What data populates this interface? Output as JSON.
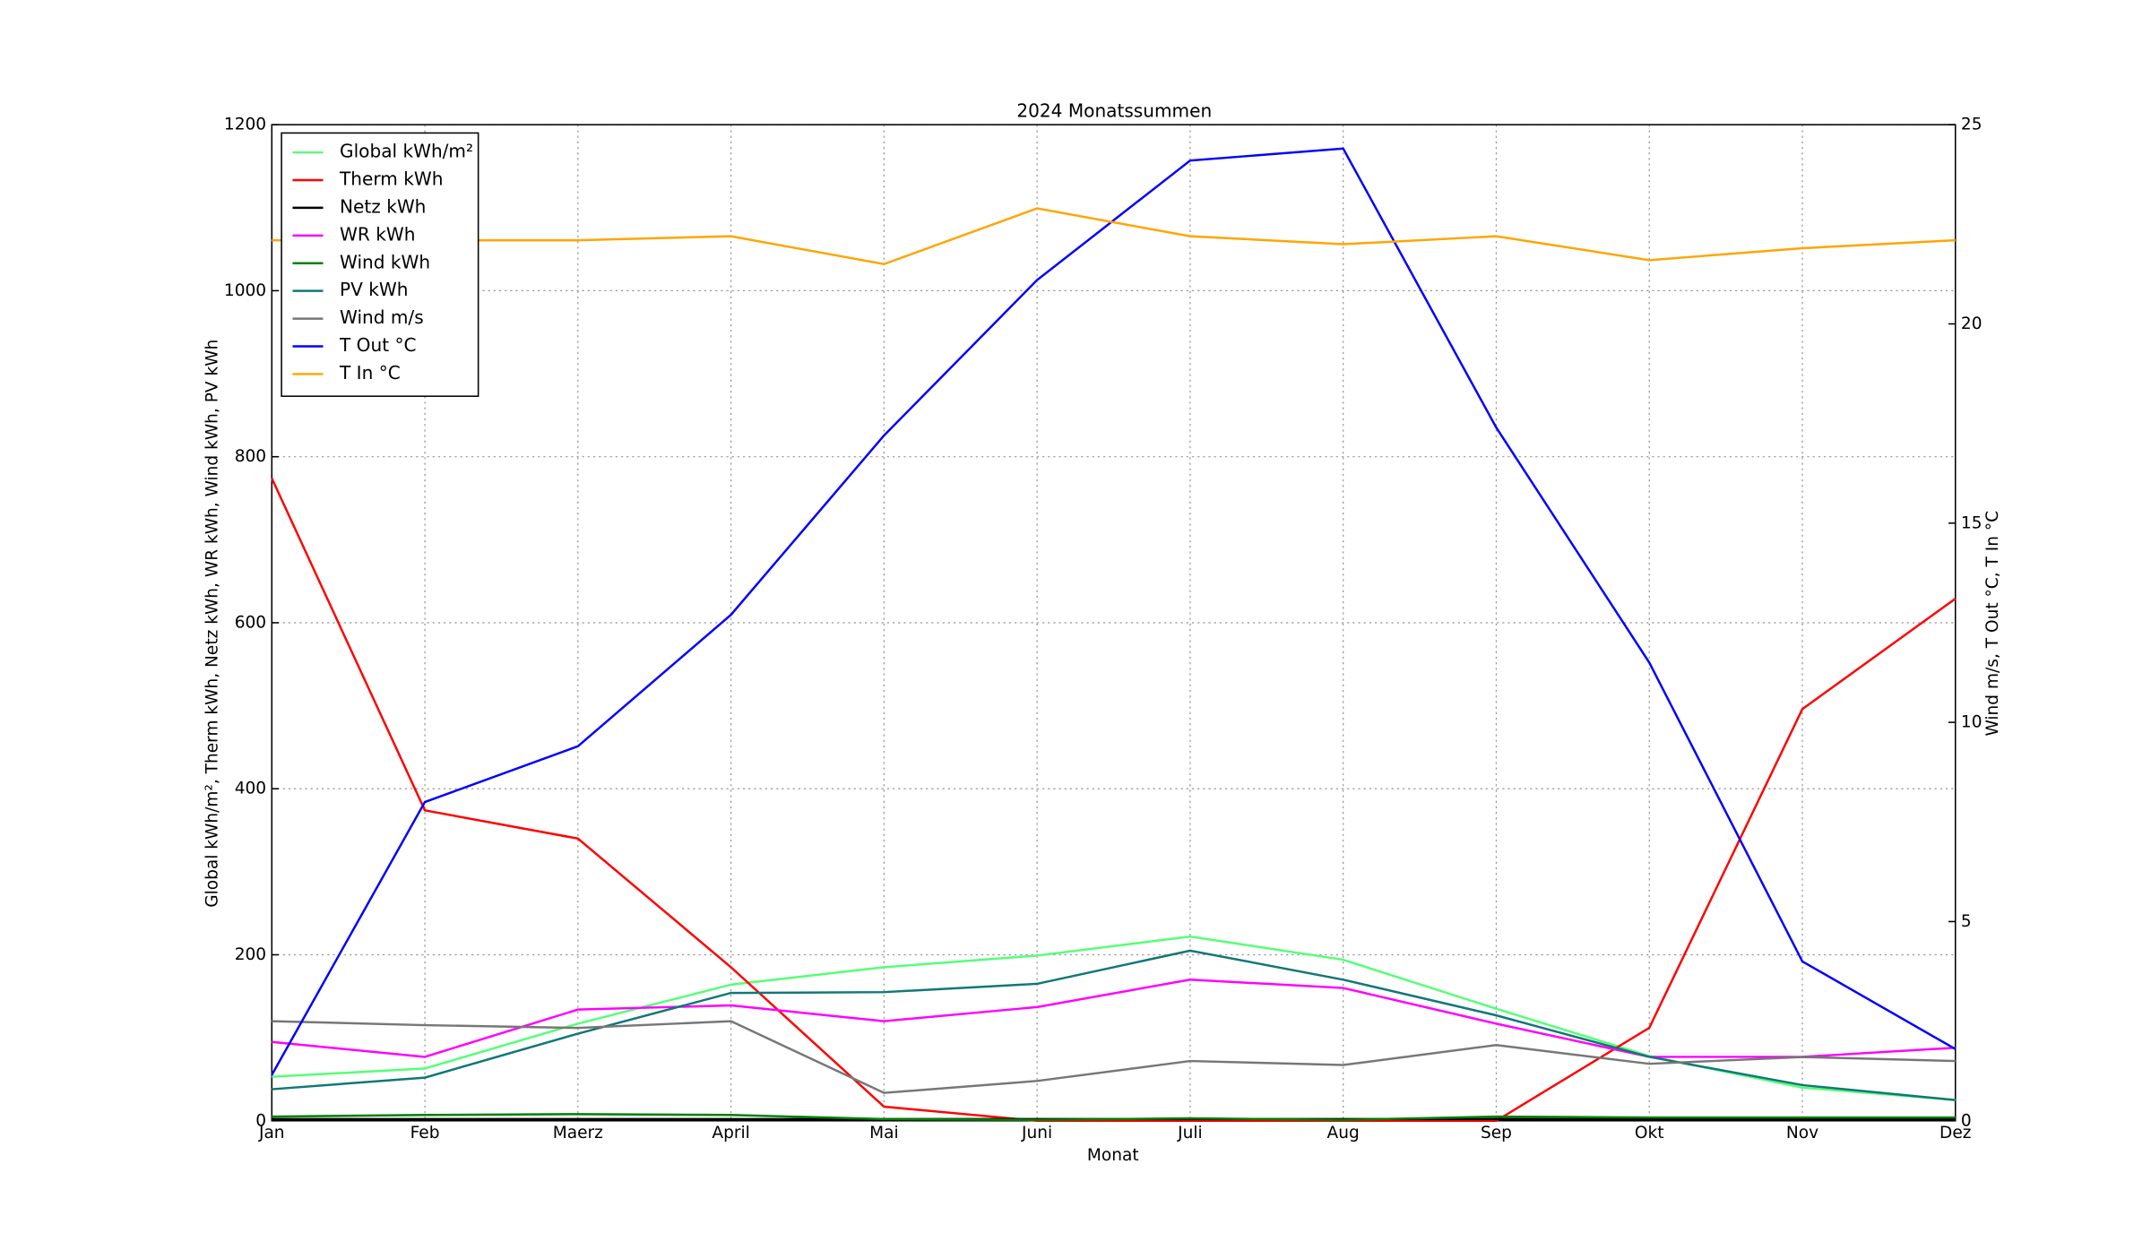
{
  "chart_data": {
    "type": "line",
    "title": "2024 Monatssummen",
    "x_label": "Monat",
    "y_label": "Global kWh/m², Therm kWh, Netz kWh, WR kWh, Wind kWh, PV kWh",
    "y2_label": "Wind m/s, T Out °C, T In °C",
    "categories": [
      "Jan",
      "Feb",
      "Maerz",
      "April",
      "Mai",
      "Juni",
      "Juli",
      "Aug",
      "Sep",
      "Okt",
      "Nov",
      "Dez"
    ],
    "ylim": [
      0,
      1200
    ],
    "yticks": [
      0,
      200,
      400,
      600,
      800,
      1000,
      1200
    ],
    "y2lim": [
      0,
      25
    ],
    "y2ticks": [
      0,
      5,
      10,
      15,
      20,
      25
    ],
    "grid": true,
    "legend": "upper left",
    "series": [
      {
        "name": "Global kWh/m²",
        "color": "#55ff77",
        "values": [
          53,
          63,
          117,
          164,
          185,
          199,
          222,
          194,
          135,
          78,
          40,
          25
        ]
      },
      {
        "name": "Therm kWh",
        "color": "#ff0000",
        "values": [
          774,
          374,
          340,
          185,
          17,
          0,
          0,
          0,
          0,
          112,
          496,
          629
        ]
      },
      {
        "name": "Netz kWh",
        "color": "#000000",
        "values": [
          2,
          2,
          2,
          2,
          2,
          2,
          2,
          2,
          2,
          2,
          2,
          2
        ]
      },
      {
        "name": "WR kWh",
        "color": "#ff00ff",
        "values": [
          95,
          77,
          134,
          139,
          120,
          137,
          170,
          160,
          117,
          77,
          77,
          88
        ]
      },
      {
        "name": "Wind kWh",
        "color": "#008000",
        "values": [
          5,
          7,
          8,
          7,
          2,
          1,
          3,
          1,
          5,
          4,
          4,
          4
        ]
      },
      {
        "name": "PV kWh",
        "color": "#117777",
        "values": [
          38,
          52,
          105,
          154,
          155,
          165,
          205,
          170,
          127,
          77,
          43,
          25
        ]
      },
      {
        "name": "Wind m/s",
        "color": "#777777",
        "axis": "y2",
        "values": [
          2.5,
          2.4,
          2.33,
          2.5,
          0.7,
          1.0,
          1.5,
          1.4,
          1.9,
          1.43,
          1.6,
          1.5
        ]
      },
      {
        "name": "T Out °C",
        "color": "#0000ff",
        "axis": "y2",
        "values": [
          1.15,
          8.0,
          9.4,
          12.7,
          17.2,
          21.1,
          24.1,
          24.4,
          17.4,
          11.5,
          4.0,
          1.8
        ]
      },
      {
        "name": "T In °C",
        "color": "#ffa500",
        "axis": "y2",
        "values": [
          22.1,
          22.1,
          22.1,
          22.2,
          21.5,
          22.9,
          22.2,
          22.0,
          22.2,
          21.6,
          21.9,
          22.1
        ]
      }
    ]
  }
}
